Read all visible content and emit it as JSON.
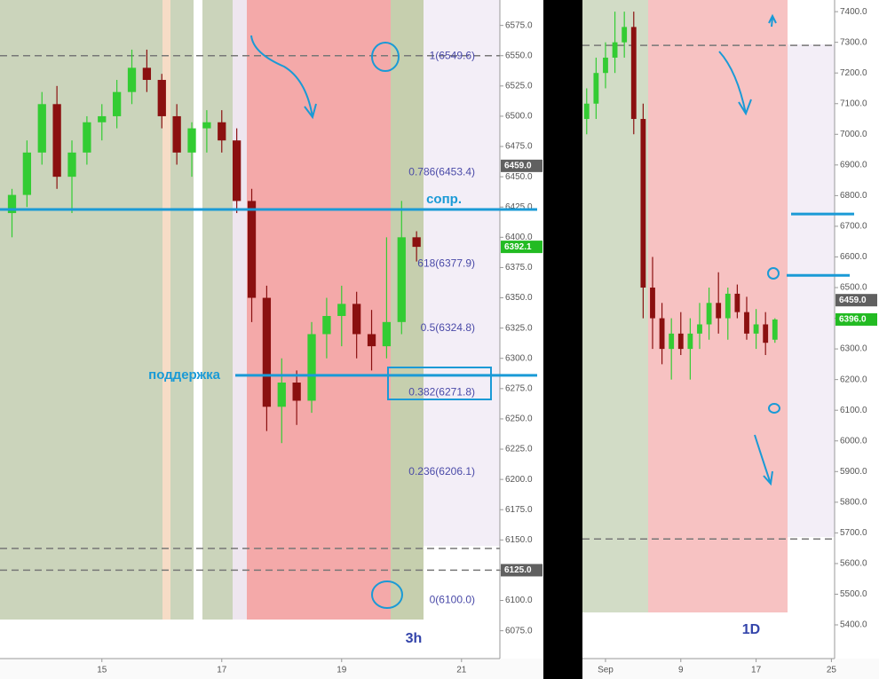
{
  "chart_data": [
    {
      "type": "candlestick",
      "timeframe": "3h",
      "x": [
        13.5,
        13.75,
        14,
        14.25,
        14.5,
        14.75,
        15,
        15.25,
        15.5,
        15.75,
        16,
        16.25,
        16.5,
        16.75,
        17,
        17.25,
        17.5,
        17.75,
        18,
        18.25,
        18.5,
        18.75,
        19,
        19.25,
        19.5,
        19.75,
        20,
        20.25
      ],
      "open": [
        6420,
        6435,
        6470,
        6510,
        6450,
        6470,
        6495,
        6500,
        6520,
        6540,
        6530,
        6500,
        6470,
        6490,
        6495,
        6480,
        6430,
        6350,
        6260,
        6280,
        6265,
        6320,
        6335,
        6345,
        6320,
        6310,
        6330,
        6400
      ],
      "high": [
        6440,
        6480,
        6520,
        6525,
        6480,
        6500,
        6510,
        6530,
        6555,
        6555,
        6535,
        6510,
        6495,
        6505,
        6505,
        6490,
        6440,
        6360,
        6300,
        6290,
        6330,
        6350,
        6360,
        6355,
        6340,
        6400,
        6430,
        6405
      ],
      "low": [
        6400,
        6425,
        6460,
        6440,
        6420,
        6460,
        6480,
        6490,
        6510,
        6520,
        6490,
        6460,
        6450,
        6470,
        6470,
        6420,
        6330,
        6240,
        6230,
        6245,
        6255,
        6300,
        6310,
        6300,
        6290,
        6300,
        6320,
        6380
      ],
      "close": [
        6435,
        6470,
        6510,
        6450,
        6470,
        6495,
        6500,
        6520,
        6540,
        6530,
        6500,
        6470,
        6490,
        6495,
        6480,
        6430,
        6350,
        6260,
        6280,
        6265,
        6320,
        6335,
        6345,
        6320,
        6310,
        6330,
        6400,
        6392.1
      ],
      "up_color": "#33cc33",
      "down_color": "#8b1010",
      "xlim": [
        13.3,
        21.64
      ],
      "xticks": [
        15,
        17,
        19,
        21
      ],
      "ylim": [
        6052,
        6596
      ],
      "yticks": [
        {
          "value": 6075,
          "label": "6075.0"
        },
        {
          "value": 6100,
          "label": "6100.0"
        },
        {
          "value": 6125,
          "label": "6125.0"
        },
        {
          "value": 6150,
          "label": "6150.0"
        },
        {
          "value": 6175,
          "label": "6175.0"
        },
        {
          "value": 6200,
          "label": "6200.0"
        },
        {
          "value": 6225,
          "label": "6225.0"
        },
        {
          "value": 6250,
          "label": "6250.0"
        },
        {
          "value": 6275,
          "label": "6275.0"
        },
        {
          "value": 6300,
          "label": "6300.0"
        },
        {
          "value": 6325,
          "label": "6325.0"
        },
        {
          "value": 6350,
          "label": "6350.0"
        },
        {
          "value": 6375,
          "label": "6375.0"
        },
        {
          "value": 6400,
          "label": "6400.0"
        },
        {
          "value": 6425,
          "label": "6425.0"
        },
        {
          "value": 6450,
          "label": "6450.0"
        },
        {
          "value": 6475,
          "label": "6475.0"
        },
        {
          "value": 6500,
          "label": "6500.0"
        },
        {
          "value": 6525,
          "label": "6525.0"
        },
        {
          "value": 6550,
          "label": "6550.0"
        },
        {
          "value": 6575,
          "label": "6575.0"
        }
      ],
      "fib_levels": [
        {
          "value": 6549.6,
          "label": "1(6549.6)"
        },
        {
          "value": 6453.4,
          "label": "0.786(6453.4)"
        },
        {
          "value": 6377.9,
          "label": "618(6377.9)"
        },
        {
          "value": 6324.8,
          "label": "0.5(6324.8)"
        },
        {
          "value": 6271.8,
          "label": "0.382(6271.8)"
        },
        {
          "value": 6206.1,
          "label": "0.236(6206.1)"
        },
        {
          "value": 6100.0,
          "label": "0(6100.0)"
        }
      ],
      "levels": [
        {
          "value": 6423,
          "label": "сопр."
        },
        {
          "value": 6286,
          "label": "поддержка"
        }
      ],
      "dashed_levels": [
        6550,
        6143,
        6125
      ],
      "price_tags": [
        {
          "value": 6459,
          "label": "6459.0",
          "color": "#606060"
        },
        {
          "value": 6392.1,
          "label": "6392.1",
          "color": "#22bb22"
        },
        {
          "value": 6125,
          "label": "6125.0",
          "color": "#606060"
        }
      ]
    },
    {
      "type": "candlestick",
      "timeframe": "1D",
      "x": [
        -1,
        0,
        1,
        2,
        3,
        4,
        5,
        6,
        7,
        8,
        9,
        10,
        11,
        12,
        13,
        14,
        15,
        16,
        17,
        18,
        19
      ],
      "open": [
        7050,
        7100,
        7200,
        7250,
        7300,
        7350,
        7050,
        6500,
        6400,
        6300,
        6350,
        6300,
        6350,
        6380,
        6450,
        6400,
        6480,
        6420,
        6350,
        6380,
        6330
      ],
      "high": [
        7150,
        7250,
        7300,
        7400,
        7400,
        7400,
        7100,
        6600,
        6450,
        6400,
        6420,
        6400,
        6450,
        6500,
        6550,
        6500,
        6510,
        6470,
        6430,
        6420,
        6400
      ],
      "low": [
        7000,
        7050,
        7150,
        7200,
        7250,
        7000,
        6400,
        6300,
        6250,
        6200,
        6280,
        6200,
        6300,
        6330,
        6350,
        6330,
        6400,
        6330,
        6300,
        6280,
        6320
      ],
      "close": [
        7100,
        7200,
        7250,
        7300,
        7350,
        7050,
        6500,
        6400,
        6300,
        6350,
        6300,
        6350,
        6380,
        6450,
        6400,
        6480,
        6420,
        6350,
        6380,
        6320,
        6396
      ],
      "up_color": "#33cc33",
      "down_color": "#8b1010",
      "xlim": [
        -1.45,
        25.34
      ],
      "xticks": [
        {
          "value": 1,
          "label": "Sep"
        },
        9,
        17,
        25
      ],
      "ylim": [
        5290,
        7438
      ],
      "yticks": [
        {
          "value": 5400,
          "label": "5400.0"
        },
        {
          "value": 5500,
          "label": "5500.0"
        },
        {
          "value": 5600,
          "label": "5600.0"
        },
        {
          "value": 5700,
          "label": "5700.0"
        },
        {
          "value": 5800,
          "label": "5800.0"
        },
        {
          "value": 5900,
          "label": "5900.0"
        },
        {
          "value": 6000,
          "label": "6000.0"
        },
        {
          "value": 6100,
          "label": "6100.0"
        },
        {
          "value": 6200,
          "label": "6200.0"
        },
        {
          "value": 6300,
          "label": "6300.0"
        },
        {
          "value": 6400,
          "label": "6400.0"
        },
        {
          "value": 6500,
          "label": "6500.0"
        },
        {
          "value": 6600,
          "label": "6600.0"
        },
        {
          "value": 6700,
          "label": "6700.0"
        },
        {
          "value": 6800,
          "label": "6800.0"
        },
        {
          "value": 6900,
          "label": "6900.0"
        },
        {
          "value": 7000,
          "label": "7000.0"
        },
        {
          "value": 7100,
          "label": "7100.0"
        },
        {
          "value": 7200,
          "label": "7200.0"
        },
        {
          "value": 7300,
          "label": "7300.0"
        },
        {
          "value": 7400,
          "label": "7400.0"
        }
      ],
      "levels": [
        {
          "value": 6740
        },
        {
          "value": 6540
        }
      ],
      "dashed_levels": [
        7290,
        5680
      ],
      "price_tags": [
        {
          "value": 6459,
          "label": "6459.0",
          "color": "#606060"
        },
        {
          "value": 6396,
          "label": "6396.0",
          "color": "#22bb22"
        }
      ]
    }
  ]
}
